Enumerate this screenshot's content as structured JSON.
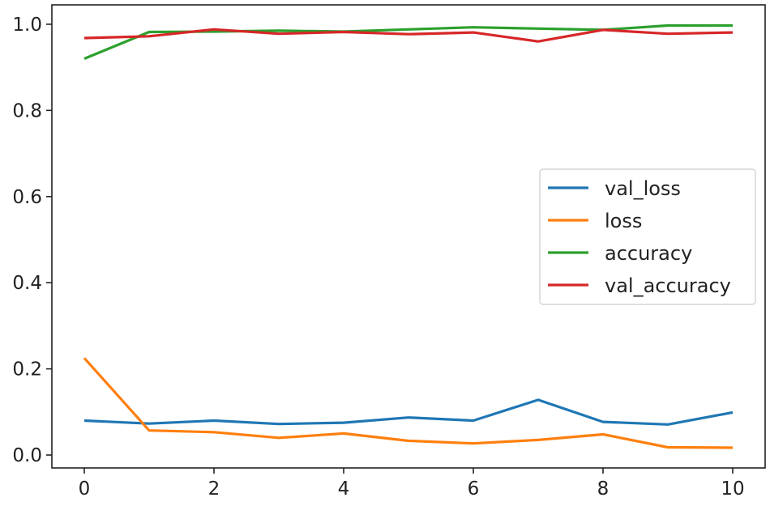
{
  "chart_data": {
    "type": "line",
    "title": "",
    "xlabel": "",
    "ylabel": "",
    "x": [
      0,
      1,
      2,
      3,
      4,
      5,
      6,
      7,
      8,
      9,
      10
    ],
    "xlim": [
      -0.5,
      10.5
    ],
    "ylim": [
      -0.03,
      1.045
    ],
    "x_ticks": [
      0,
      2,
      4,
      6,
      8,
      10
    ],
    "x_tick_labels": [
      "0",
      "2",
      "4",
      "6",
      "8",
      "10"
    ],
    "y_ticks": [
      0.0,
      0.2,
      0.4,
      0.6,
      0.8,
      1.0
    ],
    "y_tick_labels": [
      "0.0",
      "0.2",
      "0.4",
      "0.6",
      "0.8",
      "1.0"
    ],
    "grid": false,
    "legend_position": "center-right",
    "series": [
      {
        "name": "val_loss",
        "color": "#1f77b4",
        "values": [
          0.08,
          0.073,
          0.08,
          0.072,
          0.075,
          0.087,
          0.08,
          0.128,
          0.077,
          0.071,
          0.099
        ]
      },
      {
        "name": "loss",
        "color": "#ff7f0e",
        "values": [
          0.225,
          0.057,
          0.053,
          0.04,
          0.05,
          0.033,
          0.027,
          0.035,
          0.048,
          0.018,
          0.017
        ]
      },
      {
        "name": "accuracy",
        "color": "#2ca02c",
        "values": [
          0.92,
          0.982,
          0.983,
          0.985,
          0.983,
          0.988,
          0.993,
          0.99,
          0.987,
          0.997,
          0.997
        ]
      },
      {
        "name": "val_accuracy",
        "color": "#d62728",
        "values": [
          0.968,
          0.972,
          0.988,
          0.978,
          0.982,
          0.977,
          0.981,
          0.96,
          0.987,
          0.978,
          0.981
        ]
      }
    ]
  }
}
